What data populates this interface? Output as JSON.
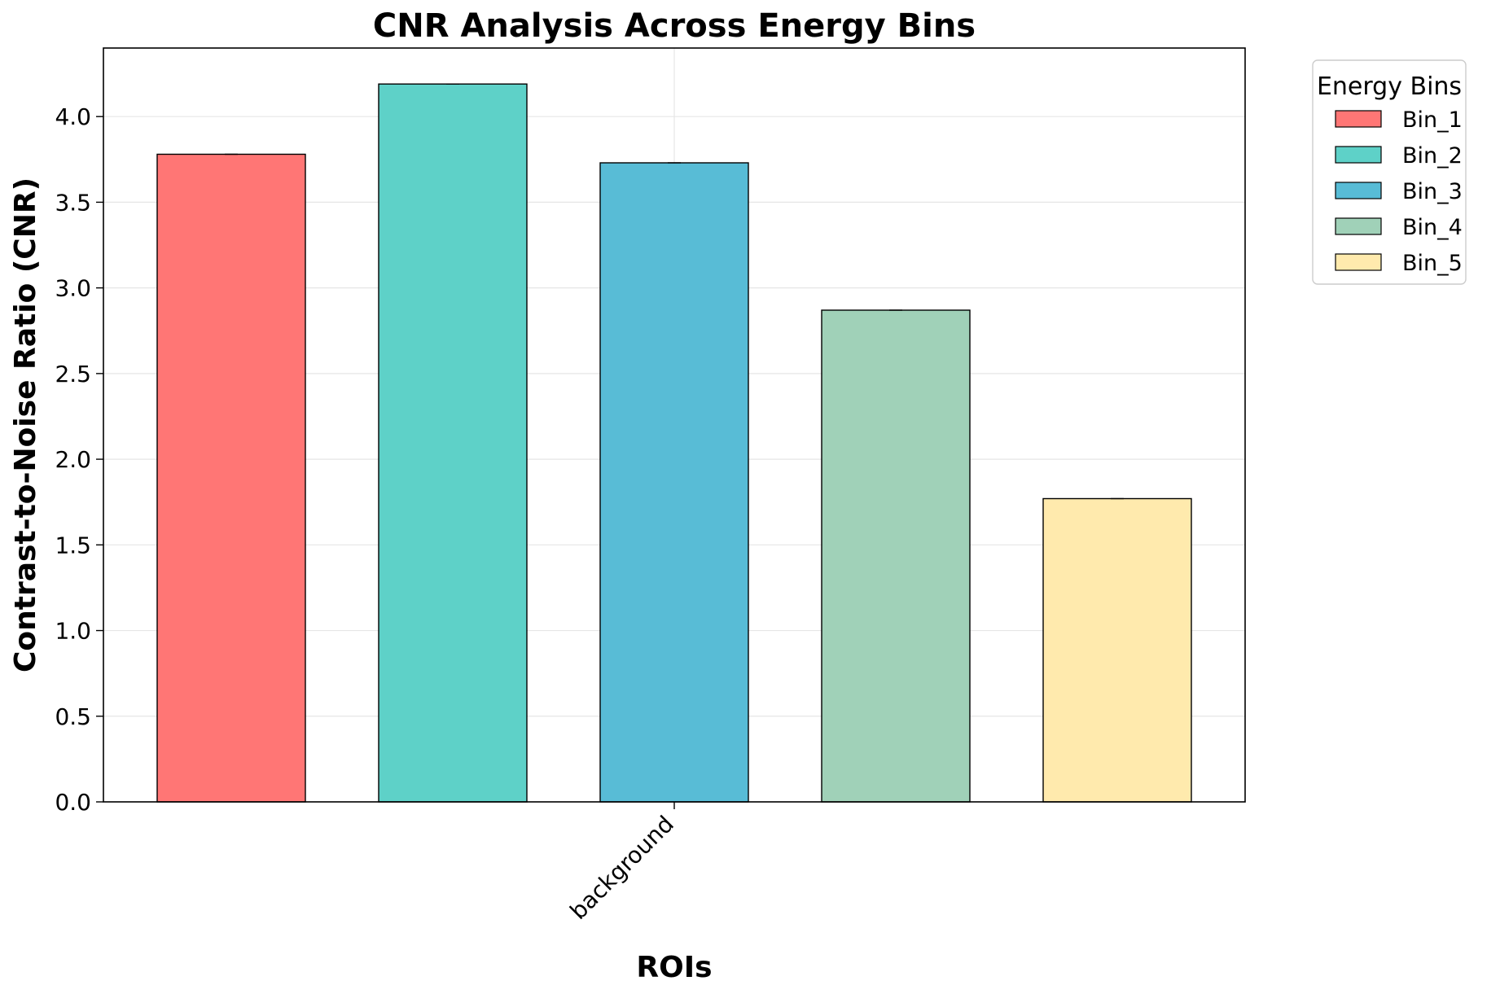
{
  "chart_data": {
    "type": "bar",
    "title": "CNR Analysis Across Energy Bins",
    "xlabel": "ROIs",
    "ylabel": "Contrast-to-Noise Ratio (CNR)",
    "categories": [
      "background"
    ],
    "series": [
      {
        "name": "Bin_1",
        "values": [
          3.78
        ],
        "color": "#ff7675"
      },
      {
        "name": "Bin_2",
        "values": [
          4.19
        ],
        "color": "#5ed1c8"
      },
      {
        "name": "Bin_3",
        "values": [
          3.73
        ],
        "color": "#58bcd6"
      },
      {
        "name": "Bin_4",
        "values": [
          2.87
        ],
        "color": "#a0d1b8"
      },
      {
        "name": "Bin_5",
        "values": [
          1.77
        ],
        "color": "#ffeaad"
      }
    ],
    "ylim": [
      0,
      4.4
    ],
    "yticks": [
      "0.0",
      "0.5",
      "1.0",
      "1.5",
      "2.0",
      "2.5",
      "3.0",
      "3.5",
      "4.0"
    ],
    "grid": true,
    "legend": {
      "title": "Energy Bins",
      "placement": "outside-top-right"
    }
  }
}
